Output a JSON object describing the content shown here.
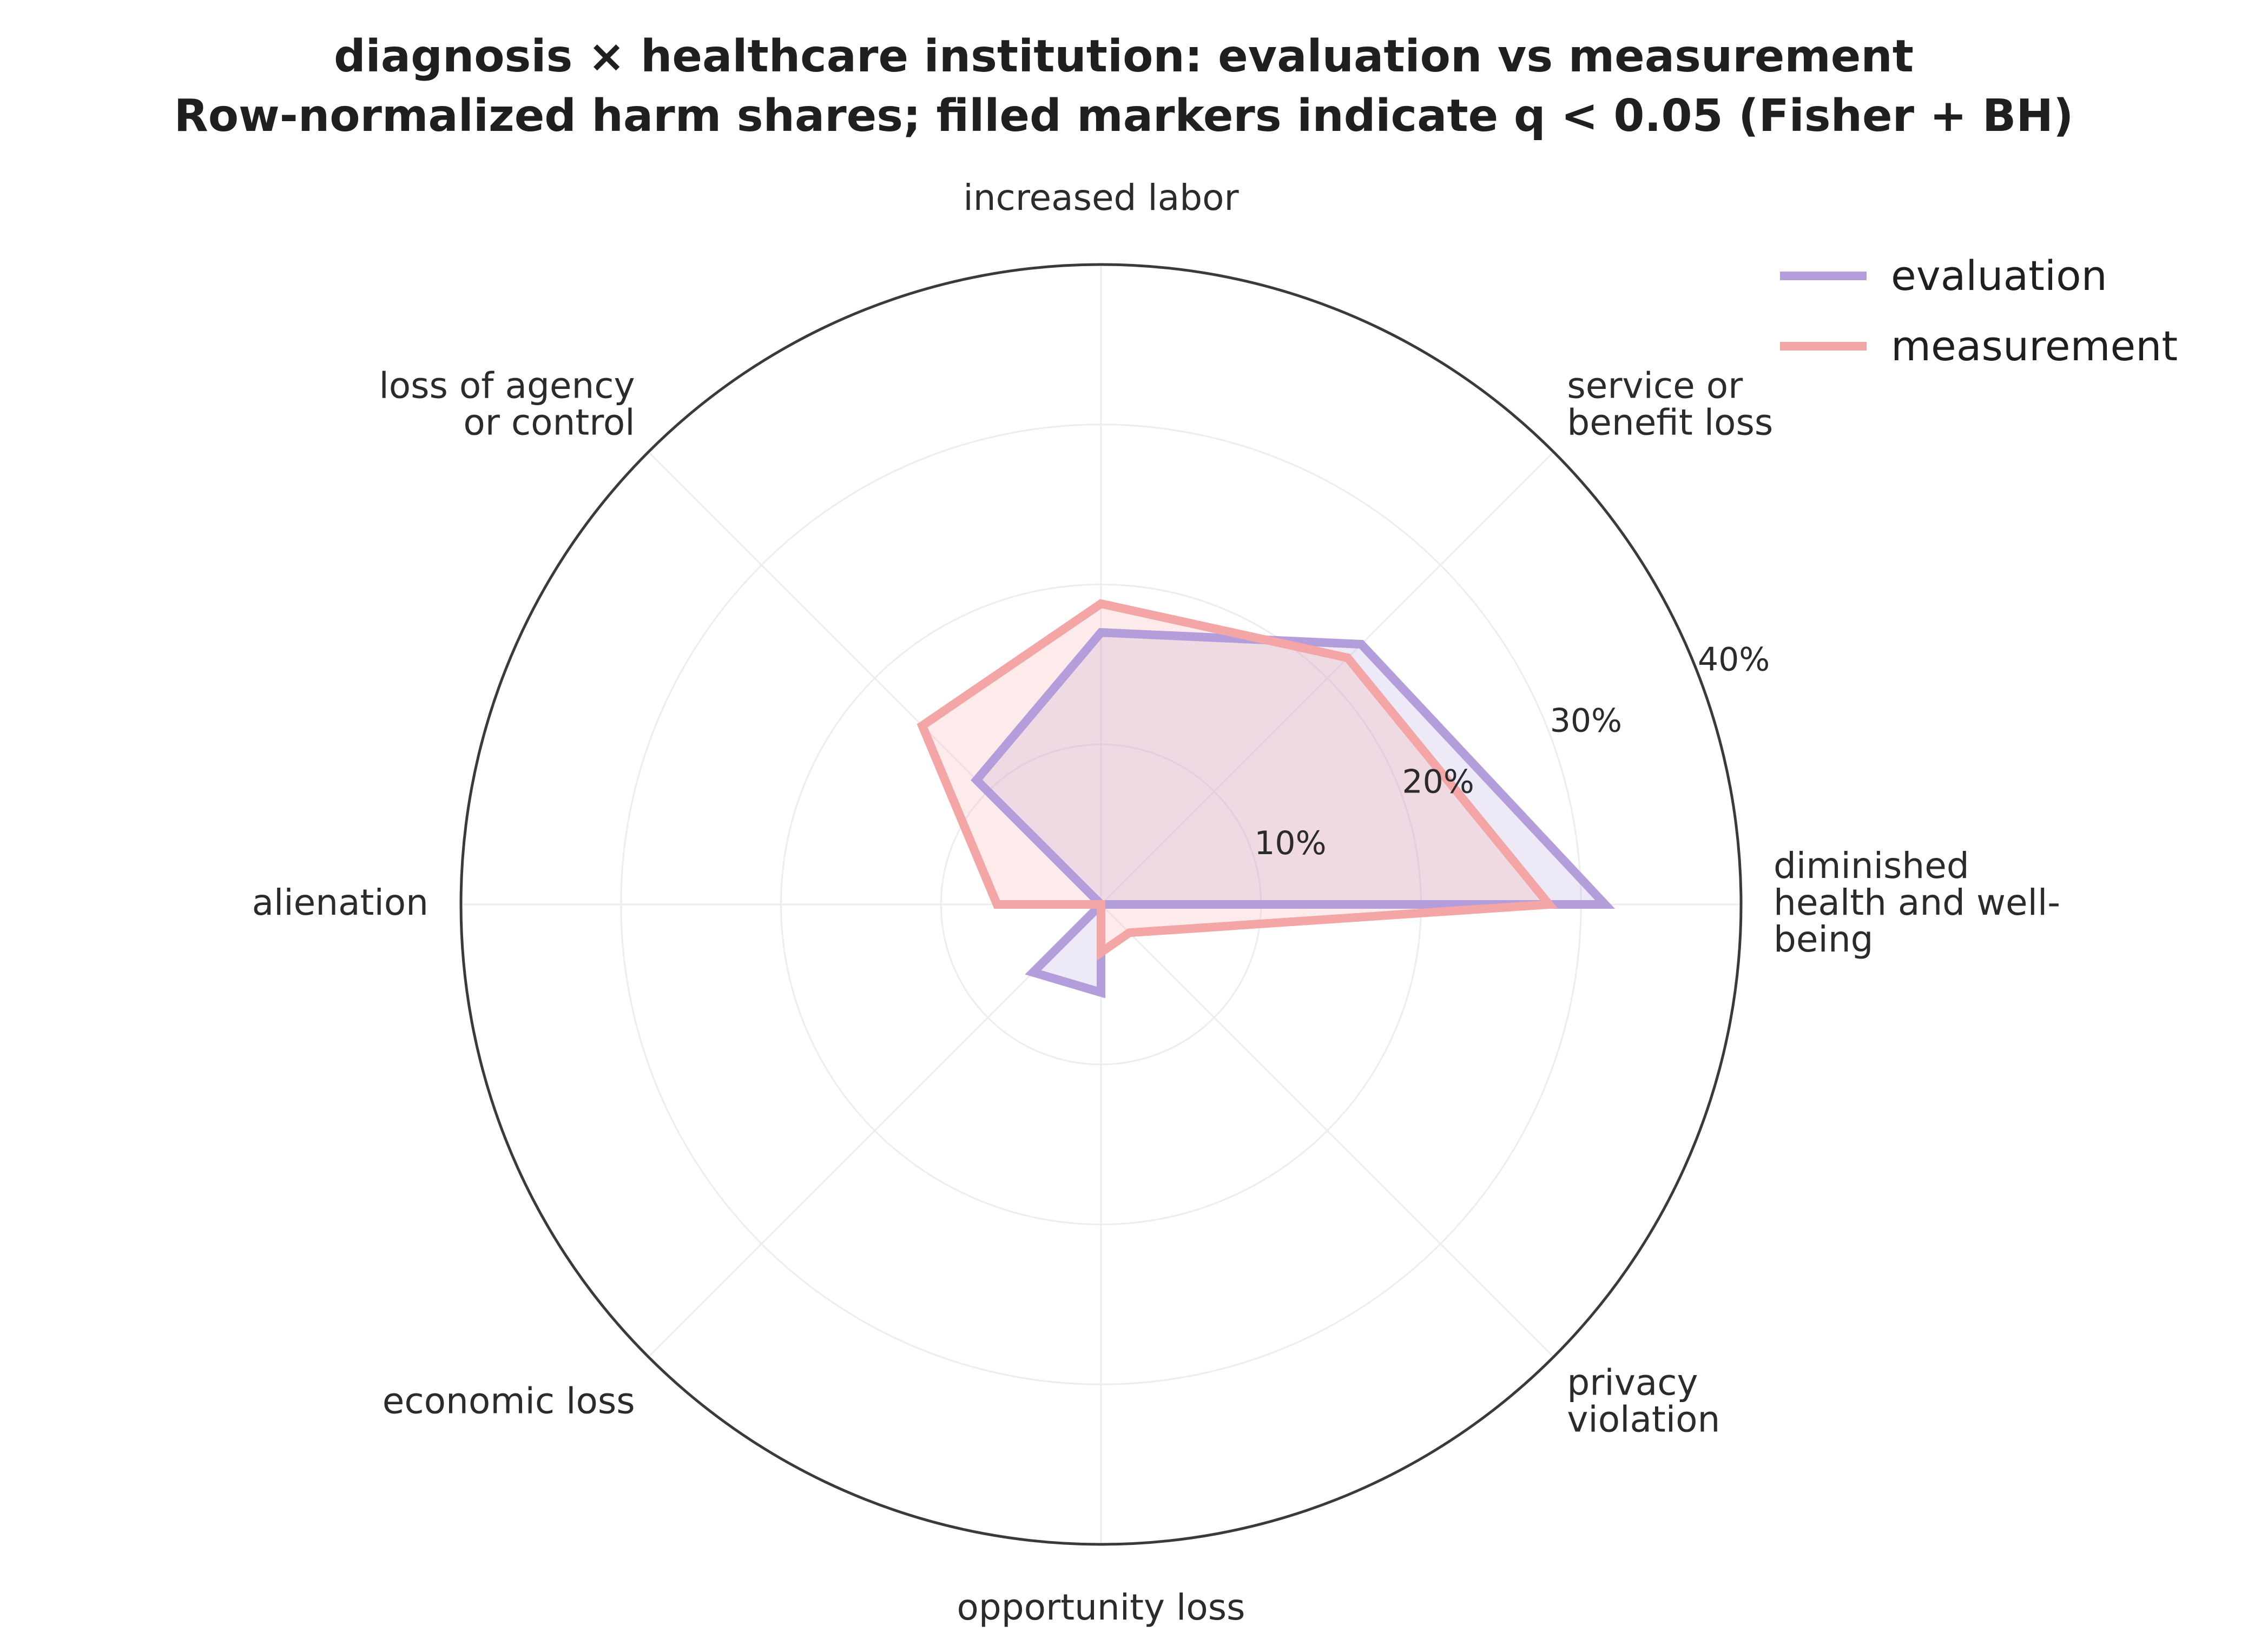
{
  "chart_data": {
    "type": "radar",
    "title": "diagnosis × healthcare institution: evaluation vs measurement",
    "subtitle": "Row-normalized harm shares; filled markers indicate q < 0.05 (Fisher + BH)",
    "categories": [
      "diminished health and well-being",
      "service or benefit loss",
      "increased labor",
      "loss of agency or control",
      "alienation",
      "economic loss",
      "opportunity loss",
      "privacy violation"
    ],
    "category_label_lines": [
      [
        "diminished",
        "health and well-",
        "being"
      ],
      [
        "service or",
        "benefit loss"
      ],
      [
        "increased labor"
      ],
      [
        "loss of agency",
        "or control"
      ],
      [
        "alienation"
      ],
      [
        "economic loss"
      ],
      [
        "opportunity loss"
      ],
      [
        "privacy",
        "violation"
      ]
    ],
    "radial_ticks": [
      10,
      20,
      30,
      40
    ],
    "radial_tick_labels": [
      "10%",
      "20%",
      "30%",
      "40%"
    ],
    "rlim": [
      0,
      40
    ],
    "unit": "%",
    "grid": true,
    "legend_position": "top-right",
    "series": [
      {
        "name": "evaluation",
        "color": "#b39ddb",
        "values": [
          31.5,
          23,
          17,
          11,
          0,
          6,
          5.5,
          0
        ]
      },
      {
        "name": "measurement",
        "color": "#f4a6a6",
        "values": [
          28,
          21.8,
          18.8,
          15.8,
          6.5,
          0,
          3,
          2.5
        ]
      }
    ]
  }
}
